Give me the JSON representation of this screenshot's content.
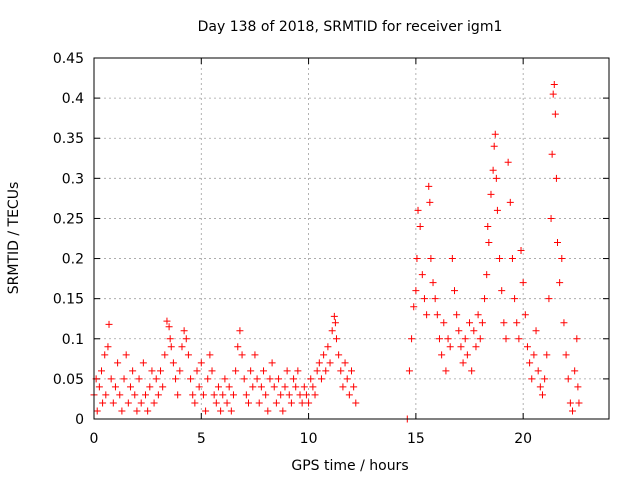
{
  "chart_data": {
    "type": "scatter",
    "title": "Day 138 of 2018, SRMTID for receiver igm1",
    "xlabel": "GPS time / hours",
    "ylabel": "SRMTID / TECUs",
    "xlim": [
      0,
      24
    ],
    "ylim": [
      0,
      0.45
    ],
    "xticks": [
      0,
      5,
      10,
      15,
      20
    ],
    "xtick_labels": [
      "0",
      "5",
      "10",
      "15",
      "20"
    ],
    "yticks": [
      0,
      0.05,
      0.1,
      0.15,
      0.2,
      0.25,
      0.3,
      0.35,
      0.4,
      0.45
    ],
    "ytick_labels": [
      "0",
      "0.05",
      "0.1",
      "0.15",
      "0.2",
      "0.25",
      "0.3",
      "0.35",
      "0.4",
      "0.45"
    ],
    "grid": true,
    "marker": "+",
    "color": "#ff0000",
    "series": [
      {
        "name": "igm1",
        "points": [
          [
            0.0,
            0.03
          ],
          [
            0.1,
            0.05
          ],
          [
            0.15,
            0.01
          ],
          [
            0.25,
            0.04
          ],
          [
            0.35,
            0.06
          ],
          [
            0.4,
            0.02
          ],
          [
            0.5,
            0.08
          ],
          [
            0.55,
            0.03
          ],
          [
            0.65,
            0.09
          ],
          [
            0.7,
            0.118
          ],
          [
            0.8,
            0.05
          ],
          [
            0.9,
            0.02
          ],
          [
            1.0,
            0.04
          ],
          [
            1.1,
            0.07
          ],
          [
            1.2,
            0.03
          ],
          [
            1.3,
            0.01
          ],
          [
            1.4,
            0.05
          ],
          [
            1.5,
            0.08
          ],
          [
            1.6,
            0.02
          ],
          [
            1.7,
            0.04
          ],
          [
            1.8,
            0.06
          ],
          [
            1.9,
            0.03
          ],
          [
            2.0,
            0.01
          ],
          [
            2.1,
            0.05
          ],
          [
            2.2,
            0.02
          ],
          [
            2.3,
            0.07
          ],
          [
            2.4,
            0.03
          ],
          [
            2.5,
            0.01
          ],
          [
            2.6,
            0.04
          ],
          [
            2.7,
            0.06
          ],
          [
            2.8,
            0.02
          ],
          [
            2.9,
            0.05
          ],
          [
            3.0,
            0.03
          ],
          [
            3.1,
            0.06
          ],
          [
            3.2,
            0.04
          ],
          [
            3.3,
            0.08
          ],
          [
            3.4,
            0.122
          ],
          [
            3.5,
            0.115
          ],
          [
            3.55,
            0.1
          ],
          [
            3.6,
            0.09
          ],
          [
            3.7,
            0.07
          ],
          [
            3.8,
            0.05
          ],
          [
            3.9,
            0.03
          ],
          [
            4.0,
            0.06
          ],
          [
            4.1,
            0.09
          ],
          [
            4.2,
            0.11
          ],
          [
            4.3,
            0.1
          ],
          [
            4.4,
            0.08
          ],
          [
            4.5,
            0.05
          ],
          [
            4.6,
            0.03
          ],
          [
            4.7,
            0.02
          ],
          [
            4.8,
            0.06
          ],
          [
            4.9,
            0.04
          ],
          [
            5.0,
            0.07
          ],
          [
            5.1,
            0.03
          ],
          [
            5.2,
            0.01
          ],
          [
            5.3,
            0.05
          ],
          [
            5.4,
            0.08
          ],
          [
            5.5,
            0.06
          ],
          [
            5.6,
            0.03
          ],
          [
            5.7,
            0.02
          ],
          [
            5.8,
            0.04
          ],
          [
            5.9,
            0.01
          ],
          [
            6.0,
            0.03
          ],
          [
            6.1,
            0.05
          ],
          [
            6.2,
            0.02
          ],
          [
            6.3,
            0.04
          ],
          [
            6.4,
            0.01
          ],
          [
            6.5,
            0.03
          ],
          [
            6.6,
            0.06
          ],
          [
            6.7,
            0.09
          ],
          [
            6.8,
            0.11
          ],
          [
            6.9,
            0.08
          ],
          [
            7.0,
            0.05
          ],
          [
            7.1,
            0.03
          ],
          [
            7.2,
            0.02
          ],
          [
            7.3,
            0.06
          ],
          [
            7.4,
            0.04
          ],
          [
            7.5,
            0.08
          ],
          [
            7.6,
            0.05
          ],
          [
            7.7,
            0.02
          ],
          [
            7.8,
            0.04
          ],
          [
            7.9,
            0.06
          ],
          [
            8.0,
            0.03
          ],
          [
            8.1,
            0.01
          ],
          [
            8.2,
            0.05
          ],
          [
            8.3,
            0.07
          ],
          [
            8.4,
            0.04
          ],
          [
            8.5,
            0.02
          ],
          [
            8.6,
            0.05
          ],
          [
            8.7,
            0.03
          ],
          [
            8.8,
            0.01
          ],
          [
            8.9,
            0.04
          ],
          [
            9.0,
            0.06
          ],
          [
            9.1,
            0.03
          ],
          [
            9.2,
            0.02
          ],
          [
            9.3,
            0.05
          ],
          [
            9.4,
            0.04
          ],
          [
            9.5,
            0.06
          ],
          [
            9.6,
            0.03
          ],
          [
            9.7,
            0.02
          ],
          [
            9.8,
            0.04
          ],
          [
            9.9,
            0.03
          ],
          [
            10.0,
            0.02
          ],
          [
            10.1,
            0.05
          ],
          [
            10.2,
            0.04
          ],
          [
            10.3,
            0.03
          ],
          [
            10.4,
            0.06
          ],
          [
            10.5,
            0.07
          ],
          [
            10.6,
            0.05
          ],
          [
            10.7,
            0.08
          ],
          [
            10.8,
            0.06
          ],
          [
            10.9,
            0.09
          ],
          [
            11.0,
            0.07
          ],
          [
            11.1,
            0.11
          ],
          [
            11.2,
            0.128
          ],
          [
            11.25,
            0.12
          ],
          [
            11.3,
            0.1
          ],
          [
            11.4,
            0.08
          ],
          [
            11.5,
            0.06
          ],
          [
            11.6,
            0.04
          ],
          [
            11.7,
            0.07
          ],
          [
            11.8,
            0.05
          ],
          [
            11.9,
            0.03
          ],
          [
            12.0,
            0.06
          ],
          [
            12.1,
            0.04
          ],
          [
            12.2,
            0.02
          ],
          [
            14.6,
            0.0
          ],
          [
            14.7,
            0.06
          ],
          [
            14.8,
            0.1
          ],
          [
            14.9,
            0.14
          ],
          [
            15.0,
            0.16
          ],
          [
            15.05,
            0.2
          ],
          [
            15.1,
            0.26
          ],
          [
            15.2,
            0.24
          ],
          [
            15.3,
            0.18
          ],
          [
            15.4,
            0.15
          ],
          [
            15.5,
            0.13
          ],
          [
            15.6,
            0.29
          ],
          [
            15.65,
            0.27
          ],
          [
            15.7,
            0.2
          ],
          [
            15.8,
            0.17
          ],
          [
            15.9,
            0.15
          ],
          [
            16.0,
            0.13
          ],
          [
            16.1,
            0.1
          ],
          [
            16.2,
            0.08
          ],
          [
            16.3,
            0.12
          ],
          [
            16.4,
            0.06
          ],
          [
            16.5,
            0.1
          ],
          [
            16.6,
            0.09
          ],
          [
            16.7,
            0.2
          ],
          [
            16.8,
            0.16
          ],
          [
            16.9,
            0.13
          ],
          [
            17.0,
            0.11
          ],
          [
            17.1,
            0.09
          ],
          [
            17.2,
            0.07
          ],
          [
            17.3,
            0.1
          ],
          [
            17.4,
            0.08
          ],
          [
            17.5,
            0.12
          ],
          [
            17.6,
            0.06
          ],
          [
            17.7,
            0.11
          ],
          [
            17.8,
            0.09
          ],
          [
            17.9,
            0.13
          ],
          [
            18.0,
            0.1
          ],
          [
            18.1,
            0.12
          ],
          [
            18.2,
            0.15
          ],
          [
            18.3,
            0.18
          ],
          [
            18.35,
            0.24
          ],
          [
            18.4,
            0.22
          ],
          [
            18.5,
            0.28
          ],
          [
            18.6,
            0.31
          ],
          [
            18.65,
            0.34
          ],
          [
            18.7,
            0.355
          ],
          [
            18.75,
            0.3
          ],
          [
            18.8,
            0.26
          ],
          [
            18.9,
            0.2
          ],
          [
            19.0,
            0.16
          ],
          [
            19.1,
            0.12
          ],
          [
            19.2,
            0.1
          ],
          [
            19.3,
            0.32
          ],
          [
            19.4,
            0.27
          ],
          [
            19.5,
            0.2
          ],
          [
            19.6,
            0.15
          ],
          [
            19.7,
            0.12
          ],
          [
            19.8,
            0.1
          ],
          [
            19.9,
            0.21
          ],
          [
            20.0,
            0.17
          ],
          [
            20.1,
            0.13
          ],
          [
            20.2,
            0.09
          ],
          [
            20.3,
            0.07
          ],
          [
            20.4,
            0.05
          ],
          [
            20.5,
            0.08
          ],
          [
            20.6,
            0.11
          ],
          [
            20.7,
            0.06
          ],
          [
            20.8,
            0.04
          ],
          [
            20.9,
            0.03
          ],
          [
            21.0,
            0.05
          ],
          [
            21.1,
            0.08
          ],
          [
            21.2,
            0.15
          ],
          [
            21.3,
            0.25
          ],
          [
            21.35,
            0.33
          ],
          [
            21.4,
            0.405
          ],
          [
            21.45,
            0.417
          ],
          [
            21.5,
            0.38
          ],
          [
            21.55,
            0.3
          ],
          [
            21.6,
            0.22
          ],
          [
            21.7,
            0.17
          ],
          [
            21.8,
            0.2
          ],
          [
            21.9,
            0.12
          ],
          [
            22.0,
            0.08
          ],
          [
            22.1,
            0.05
          ],
          [
            22.2,
            0.02
          ],
          [
            22.3,
            0.01
          ],
          [
            22.4,
            0.06
          ],
          [
            22.5,
            0.1
          ],
          [
            22.55,
            0.04
          ],
          [
            22.6,
            0.02
          ]
        ]
      }
    ]
  }
}
